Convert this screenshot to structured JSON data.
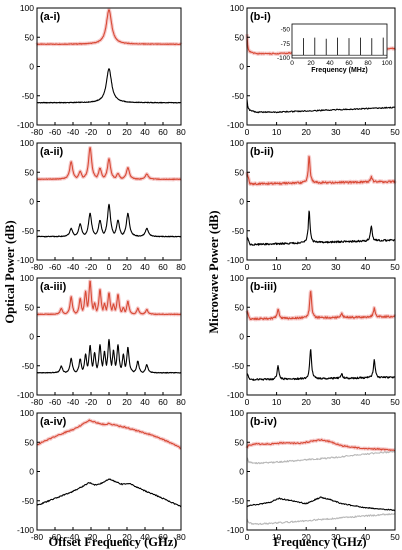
{
  "colors": {
    "red": "#d84a36",
    "black": "#000000",
    "gray": "#b8b8b8",
    "shade": "#f6c9c9"
  },
  "left_ylabel": "Optical Power (dB)",
  "right_ylabel": "Microwave Power (dB)",
  "left_xlabel": "Offset Frequency (GHz)",
  "right_xlabel": "Frequency (GHz)",
  "chart_data": [
    {
      "id": "a-i",
      "label": "(a-i)",
      "type": "line",
      "xlim": [
        -80,
        80
      ],
      "ylim": [
        -100,
        100
      ],
      "xticks": [
        -80,
        -60,
        -40,
        -20,
        0,
        20,
        40,
        60,
        80
      ],
      "yticks": [
        -100,
        -50,
        0,
        50,
        100
      ],
      "series": [
        {
          "color": "red",
          "peaks": [
            {
              "x": 0,
              "y": 97
            }
          ],
          "base": 38,
          "width": 3.5,
          "xrange": [
            -80,
            80
          ]
        },
        {
          "color": "black",
          "peaks": [
            {
              "x": 0,
              "y": -4
            }
          ],
          "base": -62,
          "width": 3.5,
          "xrange": [
            -80,
            80
          ]
        }
      ]
    },
    {
      "id": "a-ii",
      "label": "(a-ii)",
      "type": "line",
      "xlim": [
        -80,
        80
      ],
      "ylim": [
        -100,
        100
      ],
      "xticks": [
        -80,
        -60,
        -40,
        -20,
        0,
        20,
        40,
        60,
        80
      ],
      "yticks": [
        -100,
        -50,
        0,
        50,
        100
      ],
      "series": [
        {
          "color": "red",
          "peaks": [
            {
              "x": -42,
              "y": 68
            },
            {
              "x": -32,
              "y": 52
            },
            {
              "x": -21,
              "y": 93
            },
            {
              "x": -10,
              "y": 57
            },
            {
              "x": 0,
              "y": 73
            },
            {
              "x": 10,
              "y": 48
            },
            {
              "x": 21,
              "y": 58
            },
            {
              "x": 42,
              "y": 47
            }
          ],
          "base": 38,
          "width": 2,
          "xrange": [
            -80,
            80
          ]
        },
        {
          "color": "black",
          "peaks": [
            {
              "x": -42,
              "y": -46
            },
            {
              "x": -32,
              "y": -38
            },
            {
              "x": -21,
              "y": -20
            },
            {
              "x": -10,
              "y": -32
            },
            {
              "x": 0,
              "y": -5
            },
            {
              "x": 10,
              "y": -32
            },
            {
              "x": 21,
              "y": -20
            },
            {
              "x": 42,
              "y": -46
            }
          ],
          "base": -60,
          "width": 2,
          "xrange": [
            -80,
            80
          ]
        }
      ]
    },
    {
      "id": "a-iii",
      "label": "(a-iii)",
      "type": "line",
      "xlim": [
        -80,
        80
      ],
      "ylim": [
        -100,
        100
      ],
      "xticks": [
        -80,
        -60,
        -40,
        -20,
        0,
        20,
        40,
        60,
        80
      ],
      "yticks": [
        -100,
        -50,
        0,
        50,
        100
      ],
      "series": [
        {
          "color": "red",
          "peaks": [
            {
              "x": -53,
              "y": 48
            },
            {
              "x": -42,
              "y": 68
            },
            {
              "x": -32,
              "y": 65
            },
            {
              "x": -26,
              "y": 77
            },
            {
              "x": -21,
              "y": 95
            },
            {
              "x": -16,
              "y": 58
            },
            {
              "x": -10,
              "y": 80
            },
            {
              "x": -5,
              "y": 57
            },
            {
              "x": 0,
              "y": 75
            },
            {
              "x": 5,
              "y": 56
            },
            {
              "x": 10,
              "y": 72
            },
            {
              "x": 16,
              "y": 50
            },
            {
              "x": 21,
              "y": 60
            },
            {
              "x": 32,
              "y": 48
            },
            {
              "x": 42,
              "y": 46
            }
          ],
          "base": 38,
          "width": 1.5,
          "xrange": [
            -80,
            80
          ]
        },
        {
          "color": "black",
          "peaks": [
            {
              "x": -53,
              "y": -50
            },
            {
              "x": -42,
              "y": -37
            },
            {
              "x": -32,
              "y": -38
            },
            {
              "x": -26,
              "y": -30
            },
            {
              "x": -21,
              "y": -15
            },
            {
              "x": -16,
              "y": -27
            },
            {
              "x": -10,
              "y": -14
            },
            {
              "x": -5,
              "y": -25
            },
            {
              "x": 0,
              "y": -5
            },
            {
              "x": 5,
              "y": -23
            },
            {
              "x": 10,
              "y": -14
            },
            {
              "x": 16,
              "y": -30
            },
            {
              "x": 21,
              "y": -18
            },
            {
              "x": 32,
              "y": -42
            },
            {
              "x": 42,
              "y": -48
            }
          ],
          "base": -62,
          "width": 1.5,
          "xrange": [
            -80,
            80
          ]
        }
      ]
    },
    {
      "id": "a-iv",
      "label": "(a-iv)",
      "type": "line",
      "xlim": [
        -80,
        80
      ],
      "ylim": [
        -100,
        100
      ],
      "xticks": [
        -80,
        -60,
        -40,
        -20,
        0,
        20,
        40,
        60,
        80
      ],
      "yticks": [
        -100,
        -50,
        0,
        50,
        100
      ],
      "series": [
        {
          "color": "red",
          "points": [
            [
              -80,
              46
            ],
            [
              -60,
              60
            ],
            [
              -40,
              72
            ],
            [
              -30,
              80
            ],
            [
              -22,
              88
            ],
            [
              -15,
              84
            ],
            [
              -5,
              80
            ],
            [
              0,
              82
            ],
            [
              10,
              78
            ],
            [
              20,
              75
            ],
            [
              30,
              70
            ],
            [
              40,
              66
            ],
            [
              55,
              58
            ],
            [
              70,
              48
            ],
            [
              80,
              40
            ]
          ]
        },
        {
          "color": "black",
          "points": [
            [
              -80,
              -58
            ],
            [
              -60,
              -46
            ],
            [
              -40,
              -34
            ],
            [
              -30,
              -26
            ],
            [
              -22,
              -19
            ],
            [
              -15,
              -23
            ],
            [
              -8,
              -20
            ],
            [
              0,
              -13
            ],
            [
              8,
              -18
            ],
            [
              15,
              -22
            ],
            [
              22,
              -20
            ],
            [
              30,
              -26
            ],
            [
              40,
              -33
            ],
            [
              60,
              -46
            ],
            [
              80,
              -60
            ]
          ]
        }
      ]
    },
    {
      "id": "b-i",
      "label": "(b-i)",
      "type": "line",
      "xlim": [
        0,
        50
      ],
      "ylim": [
        -100,
        100
      ],
      "xticks": [
        0,
        10,
        20,
        30,
        40,
        50
      ],
      "yticks": [
        -100,
        -50,
        0,
        50,
        100
      ],
      "series": [
        {
          "color": "red",
          "points": [
            [
              0,
              55
            ],
            [
              0.3,
              30
            ],
            [
              1,
              25
            ],
            [
              3,
              22
            ],
            [
              10,
              22
            ],
            [
              20,
              24
            ],
            [
              30,
              26
            ],
            [
              40,
              28
            ],
            [
              50,
              31
            ]
          ]
        },
        {
          "color": "black",
          "points": [
            [
              0,
              -55
            ],
            [
              0.3,
              -70
            ],
            [
              1,
              -75
            ],
            [
              3,
              -78
            ],
            [
              10,
              -78
            ],
            [
              20,
              -76
            ],
            [
              30,
              -74
            ],
            [
              40,
              -72
            ],
            [
              50,
              -70
            ]
          ]
        }
      ],
      "inset": {
        "xlim": [
          0,
          100
        ],
        "ylim": [
          -100,
          -40
        ],
        "xticks": [
          0,
          20,
          40,
          60,
          80,
          100
        ],
        "yticks": [
          -100,
          -75,
          -50
        ],
        "xlabel": "Frequency (MHz)",
        "lines": [
          {
            "x": 12,
            "y": -65
          },
          {
            "x": 24,
            "y": -64
          },
          {
            "x": 36,
            "y": -66
          },
          {
            "x": 48,
            "y": -64
          },
          {
            "x": 60,
            "y": -65
          },
          {
            "x": 72,
            "y": -64
          },
          {
            "x": 84,
            "y": -65
          },
          {
            "x": 96,
            "y": -64
          }
        ],
        "floor": -100
      }
    },
    {
      "id": "b-ii",
      "label": "(b-ii)",
      "type": "line",
      "xlim": [
        0,
        50
      ],
      "ylim": [
        -100,
        100
      ],
      "xticks": [
        0,
        10,
        20,
        30,
        40,
        50
      ],
      "yticks": [
        -100,
        -50,
        0,
        50,
        100
      ],
      "series": [
        {
          "color": "red",
          "base": [
            30,
            34
          ],
          "start": 50,
          "peaks": [
            {
              "x": 21,
              "y": 78
            },
            {
              "x": 42,
              "y": 42
            }
          ],
          "width": 0.35
        },
        {
          "color": "black",
          "base": [
            -74,
            -66
          ],
          "start": -60,
          "peaks": [
            {
              "x": 21,
              "y": -16
            },
            {
              "x": 42,
              "y": -42
            }
          ],
          "width": 0.35
        }
      ]
    },
    {
      "id": "b-iii",
      "label": "(b-iii)",
      "type": "line",
      "xlim": [
        0,
        50
      ],
      "ylim": [
        -100,
        100
      ],
      "xticks": [
        0,
        10,
        20,
        30,
        40,
        50
      ],
      "yticks": [
        -100,
        -50,
        0,
        50,
        100
      ],
      "series": [
        {
          "color": "red",
          "base": [
            30,
            34
          ],
          "start": 45,
          "peaks": [
            {
              "x": 10.5,
              "y": 48
            },
            {
              "x": 21.5,
              "y": 80
            },
            {
              "x": 32,
              "y": 40
            },
            {
              "x": 43,
              "y": 48
            }
          ],
          "width": 0.35
        },
        {
          "color": "black",
          "base": [
            -74,
            -70
          ],
          "start": -62,
          "peaks": [
            {
              "x": 10.5,
              "y": -50
            },
            {
              "x": 21.5,
              "y": -20
            },
            {
              "x": 32,
              "y": -64
            },
            {
              "x": 43,
              "y": -40
            }
          ],
          "width": 0.35
        }
      ]
    },
    {
      "id": "b-iv",
      "label": "(b-iv)",
      "type": "line",
      "xlim": [
        0,
        50
      ],
      "ylim": [
        -100,
        100
      ],
      "xticks": [
        0,
        10,
        20,
        30,
        40,
        50
      ],
      "yticks": [
        -100,
        -50,
        0,
        50,
        100
      ],
      "series": [
        {
          "color": "red",
          "points": [
            [
              0,
              40
            ],
            [
              0.5,
              45
            ],
            [
              3,
              47
            ],
            [
              8,
              47
            ],
            [
              12,
              49
            ],
            [
              18,
              48
            ],
            [
              22,
              52
            ],
            [
              25,
              54
            ],
            [
              28,
              51
            ],
            [
              32,
              44
            ],
            [
              38,
              40
            ],
            [
              45,
              38
            ],
            [
              50,
              36
            ]
          ]
        },
        {
          "color": "gray",
          "points": [
            [
              0,
              24
            ],
            [
              0.5,
              16
            ],
            [
              3,
              14
            ],
            [
              10,
              16
            ],
            [
              20,
              20
            ],
            [
              30,
              24
            ],
            [
              40,
              30
            ],
            [
              50,
              34
            ]
          ]
        },
        {
          "color": "black",
          "points": [
            [
              0,
              -60
            ],
            [
              0.5,
              -58
            ],
            [
              4,
              -56
            ],
            [
              8,
              -52
            ],
            [
              11,
              -46
            ],
            [
              15,
              -50
            ],
            [
              20,
              -55
            ],
            [
              23,
              -48
            ],
            [
              25,
              -44
            ],
            [
              28,
              -48
            ],
            [
              32,
              -55
            ],
            [
              40,
              -62
            ],
            [
              50,
              -66
            ]
          ]
        },
        {
          "color": "gray",
          "points": [
            [
              0,
              -80
            ],
            [
              0.5,
              -88
            ],
            [
              3,
              -90
            ],
            [
              10,
              -88
            ],
            [
              20,
              -84
            ],
            [
              30,
              -80
            ],
            [
              40,
              -76
            ],
            [
              50,
              -72
            ]
          ]
        }
      ]
    }
  ]
}
